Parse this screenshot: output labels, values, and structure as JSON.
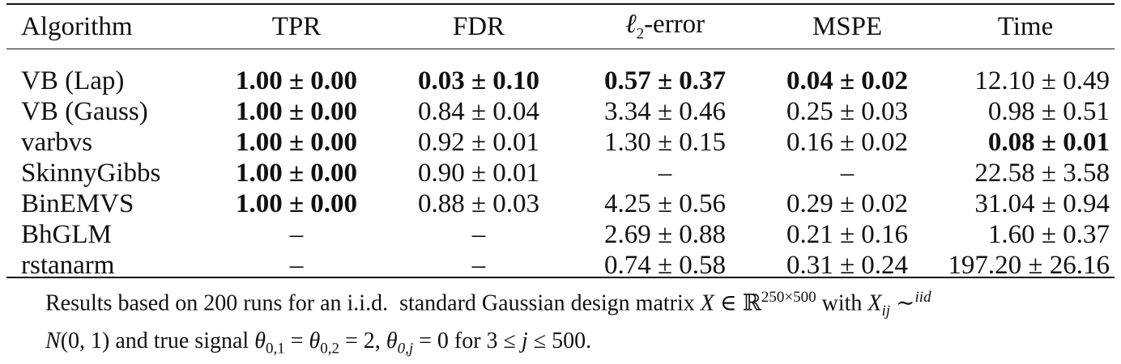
{
  "table": {
    "headers": [
      "Algorithm",
      "TPR",
      "FDR",
      "ℓ₂-error",
      "MSPE",
      "Time"
    ],
    "header_ell": "ℓ",
    "header_ell_sub": "2",
    "header_ell_rest": "-error",
    "rows": [
      {
        "alg": "VB (Lap)",
        "tpr": "1.00 ± 0.00",
        "fdr": "0.03 ± 0.10",
        "l2": "0.57 ± 0.37",
        "mspe": "0.04 ± 0.02",
        "time": "12.10 ± 0.49"
      },
      {
        "alg": "VB (Gauss)",
        "tpr": "1.00 ± 0.00",
        "fdr": "0.84 ± 0.04",
        "l2": "3.34 ± 0.46",
        "mspe": "0.25 ± 0.03",
        "time": "0.98 ± 0.51"
      },
      {
        "alg": "varbvs",
        "tpr": "1.00 ± 0.00",
        "fdr": "0.92 ± 0.01",
        "l2": "1.30 ± 0.15",
        "mspe": "0.16 ± 0.02",
        "time": "0.08 ± 0.01"
      },
      {
        "alg": "SkinnyGibbs",
        "tpr": "1.00 ± 0.00",
        "fdr": "0.90 ± 0.01",
        "l2": "–",
        "mspe": "–",
        "time": "22.58 ± 3.58"
      },
      {
        "alg": "BinEMVS",
        "tpr": "1.00 ± 0.00",
        "fdr": "0.88 ± 0.03",
        "l2": "4.25 ± 0.56",
        "mspe": "0.29 ± 0.02",
        "time": "31.04 ± 0.94"
      },
      {
        "alg": "BhGLM",
        "tpr": "–",
        "fdr": "–",
        "l2": "2.69 ± 0.88",
        "mspe": "0.21 ± 0.16",
        "time": "1.60 ± 0.37"
      },
      {
        "alg": "rstanarm",
        "tpr": "–",
        "fdr": "–",
        "l2": "0.74 ± 0.58",
        "mspe": "0.31 ± 0.24",
        "time": "197.20 ± 26.16"
      }
    ]
  },
  "caption": {
    "p1": "Results based on 200 runs for an i.i.d.  standard Gaussian design matrix ",
    "X": "X",
    "in": " ∈ ℝ",
    "dims": "250×500",
    "p2": " with ",
    "Xij": "X",
    "ij": "ij",
    "sim": " ∼",
    "iid": "iid",
    "line2a": "N",
    "line2b": "(0, 1) and true signal ",
    "theta1": "θ",
    "theta1sub": "0,1",
    "eq1": " = ",
    "theta2": "θ",
    "theta2sub": "0,2",
    "eq2": " = 2, ",
    "theta3": "θ",
    "theta3sub": "0,j",
    "eq3": " = 0 for 3 ≤ ",
    "j": "j",
    "end": " ≤ 500."
  }
}
